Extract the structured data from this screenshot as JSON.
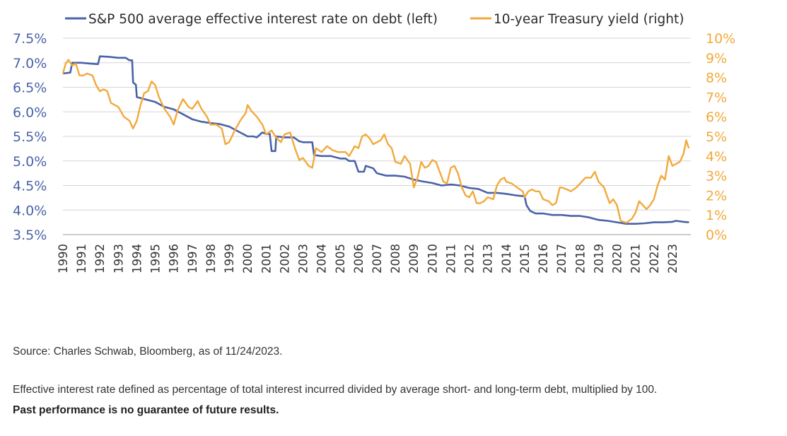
{
  "chart_data": {
    "type": "line",
    "title": "",
    "xlabel": "",
    "ylabel": "",
    "legend_position": "top",
    "grid": true,
    "y_left": {
      "lim": [
        3.5,
        7.5
      ],
      "ticks": [
        7.5,
        7.0,
        6.5,
        6.0,
        5.5,
        5.0,
        4.5,
        4.0,
        3.5
      ],
      "tick_labels": [
        "7.5%",
        "7.0%",
        "6.5%",
        "6.0%",
        "5.5%",
        "5.0%",
        "4.5%",
        "4.0%",
        "3.5%"
      ]
    },
    "y_right": {
      "lim": [
        0,
        10
      ],
      "ticks": [
        10,
        9,
        8,
        7,
        6,
        5,
        4,
        3,
        2,
        1,
        0
      ],
      "tick_labels": [
        "10%",
        "9%",
        "8%",
        "7%",
        "6%",
        "5%",
        "4%",
        "3%",
        "2%",
        "1%",
        "0%"
      ]
    },
    "x_ticks": [
      "1990",
      "1991",
      "1992",
      "1993",
      "1994",
      "1995",
      "1996",
      "1997",
      "1998",
      "1999",
      "2000",
      "2001",
      "2002",
      "2003",
      "2004",
      "2005",
      "2006",
      "2007",
      "2008",
      "2009",
      "2010",
      "2011",
      "2012",
      "2013",
      "2014",
      "2015",
      "2016",
      "2017",
      "2018",
      "2019",
      "2020",
      "2021",
      "2022",
      "2023"
    ],
    "series": [
      {
        "name": "S&P 500 average effective interest rate on debt (left)",
        "axis": "left",
        "color": "#4a63a8",
        "points": [
          [
            1990.0,
            6.78
          ],
          [
            1990.4,
            6.8
          ],
          [
            1990.5,
            7.0
          ],
          [
            1991.0,
            7.0
          ],
          [
            1991.5,
            6.98
          ],
          [
            1991.9,
            6.97
          ],
          [
            1992.0,
            7.13
          ],
          [
            1992.5,
            7.12
          ],
          [
            1993.0,
            7.1
          ],
          [
            1993.4,
            7.1
          ],
          [
            1993.6,
            7.05
          ],
          [
            1993.75,
            7.05
          ],
          [
            1993.8,
            6.6
          ],
          [
            1993.95,
            6.55
          ],
          [
            1994.0,
            6.3
          ],
          [
            1994.5,
            6.25
          ],
          [
            1995.0,
            6.2
          ],
          [
            1995.5,
            6.1
          ],
          [
            1996.0,
            6.05
          ],
          [
            1996.5,
            5.95
          ],
          [
            1997.0,
            5.85
          ],
          [
            1997.5,
            5.8
          ],
          [
            1998.0,
            5.77
          ],
          [
            1998.5,
            5.75
          ],
          [
            1999.0,
            5.7
          ],
          [
            1999.5,
            5.6
          ],
          [
            2000.0,
            5.5
          ],
          [
            2000.3,
            5.5
          ],
          [
            2000.5,
            5.48
          ],
          [
            2000.8,
            5.58
          ],
          [
            2001.0,
            5.55
          ],
          [
            2001.2,
            5.55
          ],
          [
            2001.3,
            5.2
          ],
          [
            2001.5,
            5.2
          ],
          [
            2001.55,
            5.5
          ],
          [
            2002.0,
            5.48
          ],
          [
            2002.5,
            5.48
          ],
          [
            2002.8,
            5.4
          ],
          [
            2003.0,
            5.38
          ],
          [
            2003.5,
            5.38
          ],
          [
            2003.6,
            5.12
          ],
          [
            2004.0,
            5.1
          ],
          [
            2004.5,
            5.1
          ],
          [
            2005.0,
            5.05
          ],
          [
            2005.3,
            5.05
          ],
          [
            2005.5,
            5.0
          ],
          [
            2005.8,
            5.0
          ],
          [
            2006.0,
            4.78
          ],
          [
            2006.3,
            4.78
          ],
          [
            2006.4,
            4.9
          ],
          [
            2006.8,
            4.85
          ],
          [
            2007.0,
            4.75
          ],
          [
            2007.5,
            4.7
          ],
          [
            2008.0,
            4.7
          ],
          [
            2008.5,
            4.68
          ],
          [
            2009.0,
            4.62
          ],
          [
            2009.5,
            4.58
          ],
          [
            2010.0,
            4.55
          ],
          [
            2010.5,
            4.5
          ],
          [
            2011.0,
            4.52
          ],
          [
            2011.5,
            4.5
          ],
          [
            2012.0,
            4.45
          ],
          [
            2012.5,
            4.43
          ],
          [
            2013.0,
            4.35
          ],
          [
            2013.5,
            4.35
          ],
          [
            2014.0,
            4.33
          ],
          [
            2014.5,
            4.3
          ],
          [
            2015.0,
            4.28
          ],
          [
            2015.1,
            4.1
          ],
          [
            2015.3,
            3.98
          ],
          [
            2015.6,
            3.93
          ],
          [
            2016.0,
            3.93
          ],
          [
            2016.5,
            3.9
          ],
          [
            2017.0,
            3.9
          ],
          [
            2017.5,
            3.88
          ],
          [
            2018.0,
            3.88
          ],
          [
            2018.5,
            3.85
          ],
          [
            2019.0,
            3.8
          ],
          [
            2019.5,
            3.78
          ],
          [
            2020.0,
            3.75
          ],
          [
            2020.5,
            3.72
          ],
          [
            2021.0,
            3.72
          ],
          [
            2021.5,
            3.73
          ],
          [
            2022.0,
            3.75
          ],
          [
            2022.5,
            3.75
          ],
          [
            2023.0,
            3.76
          ],
          [
            2023.2,
            3.78
          ],
          [
            2023.6,
            3.76
          ],
          [
            2023.9,
            3.75
          ]
        ]
      },
      {
        "name": "10-year Treasury yield (right)",
        "axis": "right",
        "color": "#f2a93b",
        "points": [
          [
            1990.0,
            8.2
          ],
          [
            1990.15,
            8.7
          ],
          [
            1990.3,
            8.9
          ],
          [
            1990.5,
            8.6
          ],
          [
            1990.7,
            8.7
          ],
          [
            1990.9,
            8.1
          ],
          [
            1991.1,
            8.1
          ],
          [
            1991.3,
            8.2
          ],
          [
            1991.6,
            8.1
          ],
          [
            1991.8,
            7.6
          ],
          [
            1992.0,
            7.3
          ],
          [
            1992.2,
            7.4
          ],
          [
            1992.4,
            7.3
          ],
          [
            1992.6,
            6.7
          ],
          [
            1992.8,
            6.6
          ],
          [
            1993.0,
            6.5
          ],
          [
            1993.3,
            6.0
          ],
          [
            1993.6,
            5.8
          ],
          [
            1993.8,
            5.4
          ],
          [
            1994.0,
            5.8
          ],
          [
            1994.2,
            6.6
          ],
          [
            1994.4,
            7.2
          ],
          [
            1994.6,
            7.3
          ],
          [
            1994.8,
            7.8
          ],
          [
            1995.0,
            7.6
          ],
          [
            1995.2,
            7.0
          ],
          [
            1995.5,
            6.4
          ],
          [
            1995.8,
            6.0
          ],
          [
            1996.0,
            5.6
          ],
          [
            1996.2,
            6.3
          ],
          [
            1996.5,
            6.9
          ],
          [
            1996.8,
            6.5
          ],
          [
            1997.0,
            6.4
          ],
          [
            1997.3,
            6.8
          ],
          [
            1997.5,
            6.4
          ],
          [
            1997.8,
            6.0
          ],
          [
            1998.0,
            5.6
          ],
          [
            1998.3,
            5.6
          ],
          [
            1998.6,
            5.4
          ],
          [
            1998.8,
            4.6
          ],
          [
            1999.0,
            4.7
          ],
          [
            1999.3,
            5.3
          ],
          [
            1999.6,
            5.8
          ],
          [
            1999.9,
            6.2
          ],
          [
            2000.0,
            6.6
          ],
          [
            2000.2,
            6.3
          ],
          [
            2000.5,
            6.0
          ],
          [
            2000.8,
            5.6
          ],
          [
            2001.0,
            5.1
          ],
          [
            2001.3,
            5.3
          ],
          [
            2001.5,
            5.0
          ],
          [
            2001.8,
            4.7
          ],
          [
            2002.0,
            5.1
          ],
          [
            2002.3,
            5.2
          ],
          [
            2002.6,
            4.3
          ],
          [
            2002.8,
            3.8
          ],
          [
            2003.0,
            3.9
          ],
          [
            2003.3,
            3.5
          ],
          [
            2003.5,
            3.4
          ],
          [
            2003.7,
            4.4
          ],
          [
            2004.0,
            4.2
          ],
          [
            2004.3,
            4.5
          ],
          [
            2004.6,
            4.3
          ],
          [
            2004.9,
            4.2
          ],
          [
            2005.0,
            4.2
          ],
          [
            2005.3,
            4.2
          ],
          [
            2005.5,
            4.0
          ],
          [
            2005.8,
            4.5
          ],
          [
            2006.0,
            4.4
          ],
          [
            2006.2,
            5.0
          ],
          [
            2006.4,
            5.1
          ],
          [
            2006.6,
            4.9
          ],
          [
            2006.8,
            4.6
          ],
          [
            2007.0,
            4.7
          ],
          [
            2007.2,
            4.8
          ],
          [
            2007.4,
            5.1
          ],
          [
            2007.6,
            4.6
          ],
          [
            2007.8,
            4.4
          ],
          [
            2008.0,
            3.7
          ],
          [
            2008.3,
            3.6
          ],
          [
            2008.5,
            4.0
          ],
          [
            2008.8,
            3.6
          ],
          [
            2009.0,
            2.4
          ],
          [
            2009.2,
            2.9
          ],
          [
            2009.4,
            3.7
          ],
          [
            2009.6,
            3.4
          ],
          [
            2009.8,
            3.5
          ],
          [
            2010.0,
            3.8
          ],
          [
            2010.2,
            3.7
          ],
          [
            2010.4,
            3.2
          ],
          [
            2010.6,
            2.7
          ],
          [
            2010.8,
            2.6
          ],
          [
            2011.0,
            3.4
          ],
          [
            2011.2,
            3.5
          ],
          [
            2011.4,
            3.1
          ],
          [
            2011.6,
            2.4
          ],
          [
            2011.8,
            2.0
          ],
          [
            2012.0,
            1.9
          ],
          [
            2012.2,
            2.2
          ],
          [
            2012.4,
            1.6
          ],
          [
            2012.6,
            1.6
          ],
          [
            2012.8,
            1.7
          ],
          [
            2013.0,
            1.9
          ],
          [
            2013.3,
            1.8
          ],
          [
            2013.5,
            2.5
          ],
          [
            2013.7,
            2.8
          ],
          [
            2013.9,
            2.9
          ],
          [
            2014.0,
            2.7
          ],
          [
            2014.3,
            2.6
          ],
          [
            2014.6,
            2.4
          ],
          [
            2014.9,
            2.2
          ],
          [
            2015.0,
            1.9
          ],
          [
            2015.2,
            2.2
          ],
          [
            2015.4,
            2.3
          ],
          [
            2015.6,
            2.2
          ],
          [
            2015.8,
            2.2
          ],
          [
            2016.0,
            1.8
          ],
          [
            2016.3,
            1.7
          ],
          [
            2016.5,
            1.5
          ],
          [
            2016.7,
            1.6
          ],
          [
            2016.9,
            2.4
          ],
          [
            2017.0,
            2.4
          ],
          [
            2017.3,
            2.3
          ],
          [
            2017.5,
            2.2
          ],
          [
            2017.8,
            2.4
          ],
          [
            2018.0,
            2.6
          ],
          [
            2018.3,
            2.9
          ],
          [
            2018.6,
            2.9
          ],
          [
            2018.8,
            3.2
          ],
          [
            2019.0,
            2.7
          ],
          [
            2019.3,
            2.4
          ],
          [
            2019.6,
            1.6
          ],
          [
            2019.8,
            1.8
          ],
          [
            2020.0,
            1.5
          ],
          [
            2020.2,
            0.7
          ],
          [
            2020.5,
            0.6
          ],
          [
            2020.8,
            0.8
          ],
          [
            2021.0,
            1.1
          ],
          [
            2021.2,
            1.7
          ],
          [
            2021.4,
            1.5
          ],
          [
            2021.6,
            1.3
          ],
          [
            2021.8,
            1.5
          ],
          [
            2022.0,
            1.8
          ],
          [
            2022.2,
            2.5
          ],
          [
            2022.4,
            3.0
          ],
          [
            2022.6,
            2.8
          ],
          [
            2022.8,
            4.0
          ],
          [
            2023.0,
            3.5
          ],
          [
            2023.2,
            3.6
          ],
          [
            2023.4,
            3.7
          ],
          [
            2023.6,
            4.1
          ],
          [
            2023.75,
            4.8
          ],
          [
            2023.85,
            4.5
          ],
          [
            2023.9,
            4.4
          ]
        ]
      }
    ]
  },
  "notes": {
    "source": "Source: Charles Schwab, Bloomberg, as of 11/24/2023.",
    "definition": "Effective interest rate defined as percentage of total interest incurred divided by average short- and long-term debt, multiplied by 100.",
    "disclaimer": "Past performance is no guarantee of future results."
  }
}
